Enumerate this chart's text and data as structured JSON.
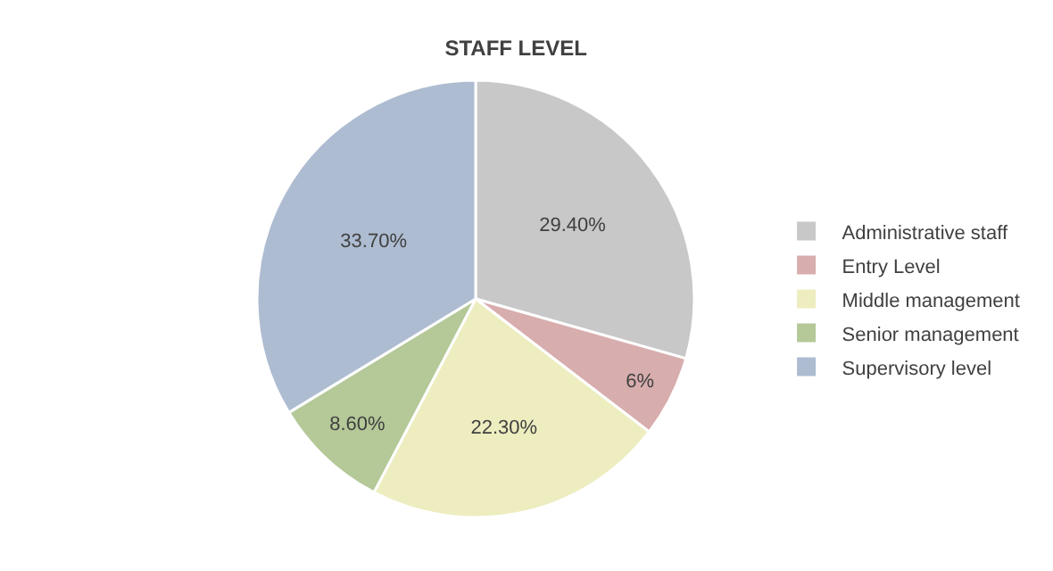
{
  "chart_data": {
    "type": "pie",
    "title": "STAFF LEVEL",
    "categories": [
      "Administrative staff",
      "Entry Level",
      "Middle management",
      "Senior management",
      "Supervisory level"
    ],
    "values": [
      29.4,
      6,
      22.3,
      8.6,
      33.7
    ],
    "value_labels": [
      "29.40%",
      "6%",
      "22.30%",
      "8.60%",
      "33.70%"
    ],
    "colors": [
      "#c8c8c8",
      "#d8adad",
      "#ededc0",
      "#b4c898",
      "#adbcd1"
    ],
    "legend": "right"
  }
}
